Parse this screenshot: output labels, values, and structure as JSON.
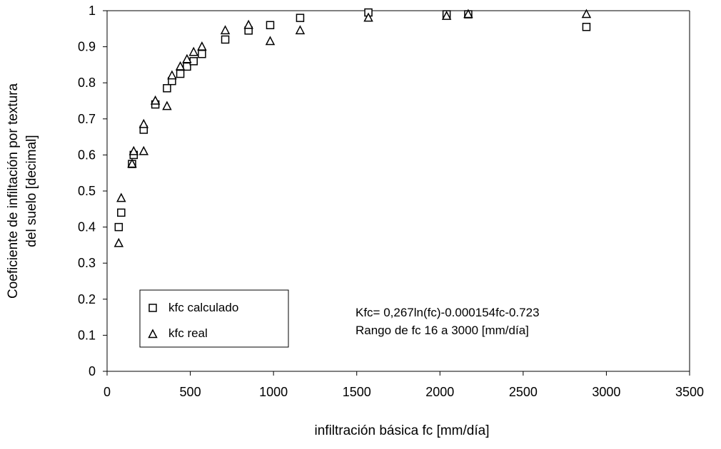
{
  "chart_data": {
    "type": "scatter",
    "title": "",
    "xlabel": "infiltración básica fc [mm/día]",
    "ylabel": [
      "Coeficiente de infiltación por textura",
      "del suelo [decimal]"
    ],
    "xlim": [
      0,
      3500
    ],
    "ylim": [
      0,
      1
    ],
    "xticks": [
      0,
      500,
      1000,
      1500,
      2000,
      2500,
      3000,
      3500
    ],
    "yticks": [
      0,
      0.1,
      0.2,
      0.3,
      0.4,
      0.5,
      0.6,
      0.7,
      0.8,
      0.9,
      1
    ],
    "grid": false,
    "legend_position": "bottom-left",
    "annotations": [
      "Kfc= 0,267ln(fc)-0.000154fc-0.723",
      "Rango de fc 16 a 3000 [mm/día]"
    ],
    "series": [
      {
        "name": "kfc calculado",
        "marker": "square",
        "points": [
          [
            70,
            0.4
          ],
          [
            85,
            0.44
          ],
          [
            150,
            0.575
          ],
          [
            160,
            0.6
          ],
          [
            220,
            0.67
          ],
          [
            290,
            0.74
          ],
          [
            360,
            0.785
          ],
          [
            390,
            0.805
          ],
          [
            440,
            0.825
          ],
          [
            480,
            0.845
          ],
          [
            520,
            0.86
          ],
          [
            570,
            0.88
          ],
          [
            710,
            0.92
          ],
          [
            850,
            0.945
          ],
          [
            980,
            0.96
          ],
          [
            1160,
            0.98
          ],
          [
            1570,
            0.995
          ],
          [
            2040,
            0.99
          ],
          [
            2170,
            0.99
          ],
          [
            2880,
            0.955
          ]
        ]
      },
      {
        "name": "kfc real",
        "marker": "triangle",
        "points": [
          [
            70,
            0.355
          ],
          [
            85,
            0.48
          ],
          [
            150,
            0.575
          ],
          [
            160,
            0.61
          ],
          [
            220,
            0.61
          ],
          [
            220,
            0.685
          ],
          [
            290,
            0.75
          ],
          [
            360,
            0.735
          ],
          [
            390,
            0.82
          ],
          [
            440,
            0.845
          ],
          [
            480,
            0.865
          ],
          [
            520,
            0.885
          ],
          [
            570,
            0.9
          ],
          [
            710,
            0.945
          ],
          [
            850,
            0.96
          ],
          [
            980,
            0.915
          ],
          [
            1160,
            0.945
          ],
          [
            1570,
            0.98
          ],
          [
            2040,
            0.985
          ],
          [
            2170,
            0.99
          ],
          [
            2880,
            0.99
          ]
        ]
      }
    ]
  }
}
